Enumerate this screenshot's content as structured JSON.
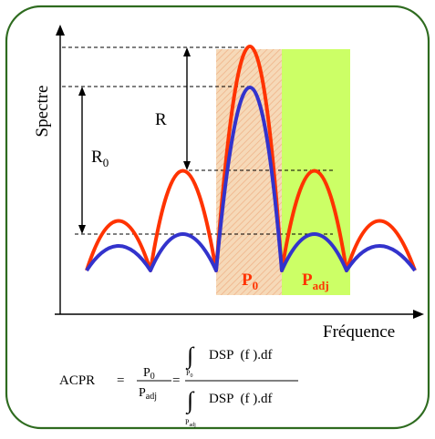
{
  "colors": {
    "frame_border": "#2e6b1f",
    "axis": "#000000",
    "curve_outer": "#ff3300",
    "curve_inner": "#3333cc",
    "band_main": "#f6d9b8",
    "band_main_hatch": "#f0b48a",
    "band_adjacent": "#ccff66",
    "band_label": "#ff3300",
    "guide": "#000000"
  },
  "axes": {
    "y_label": "Spectre",
    "x_label": "Fréquence"
  },
  "annotations": {
    "R": "R",
    "R0_main": "R",
    "R0_sub": "0"
  },
  "bands": {
    "main": {
      "label_main": "P",
      "label_sub": "0"
    },
    "adjacent": {
      "label_main": "P",
      "label_sub": "adj"
    }
  },
  "formula": {
    "lhs": "ACPR",
    "eq1": "=",
    "frac1_num_main": "P",
    "frac1_num_sub": "0",
    "frac1_den_main": "P",
    "frac1_den_sub": "adj",
    "eq2": "=",
    "integral_symbol": "∫",
    "num_integrand": "DSP  (f ).df",
    "num_limit_main": "P",
    "num_limit_sub": "0",
    "den_integrand": "DSP  (f ).df",
    "den_limit_main": "P",
    "den_limit_sub": "adj"
  }
}
